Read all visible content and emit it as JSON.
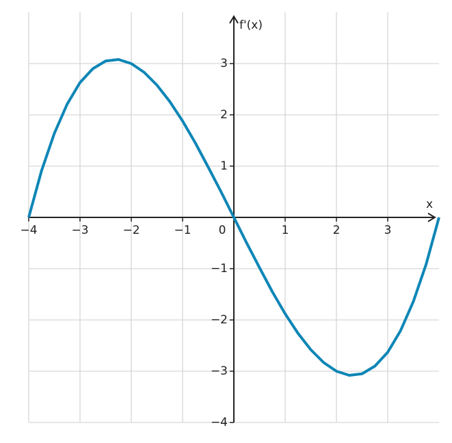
{
  "chart_data": {
    "type": "line",
    "x_label": "x",
    "y_label": "f'(x)",
    "x": [
      -4,
      -3.75,
      -3.5,
      -3.25,
      -3,
      -2.75,
      -2.5,
      -2.25,
      -2,
      -1.75,
      -1.5,
      -1.25,
      -1,
      -0.75,
      -0.5,
      -0.25,
      0,
      0.25,
      0.5,
      0.75,
      1,
      1.25,
      1.5,
      1.75,
      2,
      2.25,
      2.5,
      2.75,
      3,
      3.25,
      3.5,
      3.75,
      4
    ],
    "series": [
      {
        "color": "#0d86b6",
        "values": [
          0,
          0.91,
          1.64,
          2.21,
          2.63,
          2.9,
          3.05,
          3.08,
          3,
          2.83,
          2.58,
          2.26,
          1.88,
          1.45,
          0.98,
          0.5,
          0,
          -0.5,
          -0.98,
          -1.45,
          -1.88,
          -2.26,
          -2.58,
          -2.83,
          -3,
          -3.08,
          -3.05,
          -2.9,
          -2.63,
          -2.21,
          -1.64,
          -0.91,
          0
        ]
      }
    ],
    "xlim": [
      -4,
      4
    ],
    "ylim": [
      -4,
      4
    ],
    "xticks": [
      {
        "value": -4,
        "label": "−4"
      },
      {
        "value": -3,
        "label": "−3"
      },
      {
        "value": -2,
        "label": "−2"
      },
      {
        "value": -1,
        "label": "−1"
      },
      0,
      1,
      2,
      3
    ],
    "yticks": [
      {
        "value": -4,
        "label": "−4"
      },
      {
        "value": -3,
        "label": "−3"
      },
      {
        "value": -2,
        "label": "−2"
      },
      {
        "value": -1,
        "label": "−1"
      },
      1,
      2,
      3
    ],
    "grid": true
  }
}
